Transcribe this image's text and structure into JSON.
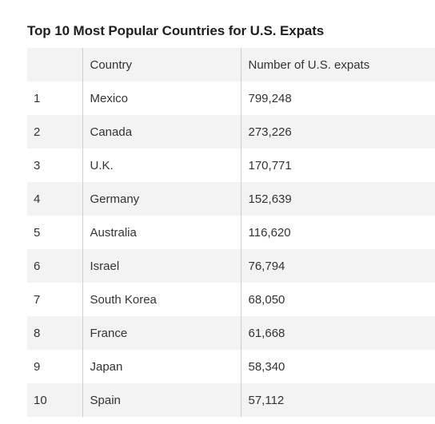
{
  "title": "Top 10 Most Popular Countries for U.S. Expats",
  "table": {
    "headers": {
      "rank": "",
      "country": "Country",
      "expats": "Number of U.S. expats"
    },
    "rows": [
      {
        "rank": "1",
        "country": "Mexico",
        "expats": "799,248"
      },
      {
        "rank": "2",
        "country": "Canada",
        "expats": "273,226"
      },
      {
        "rank": "3",
        "country": "U.K.",
        "expats": "170,771"
      },
      {
        "rank": "4",
        "country": "Germany",
        "expats": "152,639"
      },
      {
        "rank": "5",
        "country": "Australia",
        "expats": "116,620"
      },
      {
        "rank": "6",
        "country": "Israel",
        "expats": "76,794"
      },
      {
        "rank": "7",
        "country": "South Korea",
        "expats": "68,050"
      },
      {
        "rank": "8",
        "country": "France",
        "expats": "61,668"
      },
      {
        "rank": "9",
        "country": "Japan",
        "expats": "58,340"
      },
      {
        "rank": "10",
        "country": "Spain",
        "expats": "57,112"
      }
    ]
  },
  "colors": {
    "row_shade": "#f3f3f3",
    "divider": "#cfcfcf",
    "text": "#333333"
  }
}
